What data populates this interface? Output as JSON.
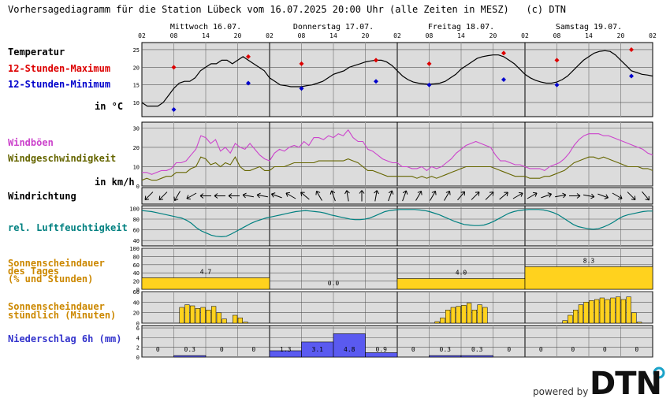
{
  "title": "Vorhersagediagramm für die Station Lübeck vom 16.07.2025 20:00 Uhr (alle Zeiten in MESZ)   (c) DTN",
  "branding": {
    "powered_by": "powered by",
    "logo_text": "DTN",
    "accent_color": "#1aa3c9"
  },
  "labels": {
    "temp_title": "Temperatur",
    "max_label": "12-Stunden-Maximum",
    "min_label": "12-Stunden-Minimum",
    "temp_unit": "in °C",
    "gust_label": "Windböen",
    "wind_label": "Windgeschwindigkeit",
    "wind_unit": "in km/h",
    "dir_label": "Windrichtung",
    "hum_label": "rel. Luftfeuchtigkeit",
    "sun_day_label_1": "Sonnenscheindauer",
    "sun_day_label_2": "des Tages",
    "sun_day_label_3": "(% und Stunden)",
    "sun_hour_label_1": "Sonnenscheindauer",
    "sun_hour_label_2": "stündlich (Minuten)",
    "precip_label": "Niederschlag 6h (mm)"
  },
  "colors": {
    "max": "#dd0000",
    "min": "#0000cc",
    "gust": "#cc44cc",
    "wind": "#666600",
    "hum": "#008080",
    "sun_label": "#cc8800",
    "sun_fill": "#ffd21e",
    "precip": "#3333cc",
    "precip_fill": "#5a5af0",
    "panel_bg": "#dcdcdc"
  },
  "chart_data": {
    "type": "line",
    "days": [
      "Mittwoch 16.07.",
      "Donnerstag 17.07.",
      "Freitag 18.07.",
      "Samstag 19.07."
    ],
    "hour_ticks": [
      "02",
      "08",
      "14",
      "20",
      "02",
      "08",
      "14",
      "20",
      "02",
      "08",
      "14",
      "20",
      "02",
      "08",
      "14",
      "20",
      "02"
    ],
    "temperature": {
      "yticks": [
        10,
        15,
        20,
        25
      ],
      "ylim": [
        6,
        27
      ],
      "hourly": [
        10,
        9,
        9,
        9,
        10,
        12,
        14,
        15.5,
        16,
        16,
        17,
        19,
        20,
        21,
        21,
        22,
        22,
        21,
        22,
        23,
        22,
        21,
        20,
        19,
        17,
        16,
        15,
        14.8,
        14.5,
        14.5,
        14.5,
        14.8,
        15,
        15.5,
        16,
        17,
        18,
        18.5,
        19,
        20,
        20.5,
        21,
        21.5,
        21.8,
        22,
        22,
        21.5,
        20.5,
        19,
        17.5,
        16.5,
        15.8,
        15.5,
        15.3,
        15.2,
        15.3,
        15.5,
        16,
        17,
        18,
        19.5,
        20.5,
        21.5,
        22.5,
        23,
        23.3,
        23.5,
        23.5,
        23,
        22,
        21,
        19.5,
        18,
        17,
        16.3,
        15.8,
        15.5,
        15.5,
        15.8,
        16.5,
        17.5,
        19,
        20.5,
        22,
        23,
        24,
        24.5,
        24.7,
        24.5,
        23.5,
        22,
        20.5,
        19,
        18.5,
        18,
        17.8,
        17.5
      ],
      "max": [
        20,
        23,
        21,
        22,
        21,
        24,
        22,
        25
      ],
      "max_hours": [
        6,
        20,
        30,
        44,
        54,
        68,
        78,
        92
      ],
      "min": [
        8,
        15.5,
        14,
        16,
        15,
        16.5,
        15,
        17.5
      ],
      "min_hours": [
        6,
        20,
        30,
        44,
        54,
        68,
        78,
        92
      ]
    },
    "wind": {
      "yticks": [
        0,
        10,
        20,
        30
      ],
      "ylim": [
        0,
        33
      ],
      "gust": [
        7,
        7,
        6,
        7,
        8,
        8,
        9,
        12,
        12,
        13,
        16,
        19,
        26,
        25,
        22,
        24,
        18,
        20,
        17,
        22,
        20,
        19,
        22,
        19,
        16,
        14,
        13,
        17,
        19,
        18,
        20,
        21,
        20,
        23,
        21,
        25,
        25,
        24,
        26,
        25,
        27,
        26,
        29,
        25,
        23,
        23,
        19,
        18,
        16,
        14,
        13,
        12,
        12,
        10,
        10,
        9,
        9,
        10,
        8,
        10,
        9,
        10,
        12,
        14,
        17,
        19,
        21,
        22,
        23,
        22,
        21,
        20,
        16,
        13,
        13,
        12,
        11,
        11,
        10,
        9,
        9,
        9,
        8,
        10,
        11,
        12,
        14,
        17,
        21,
        24,
        26,
        27,
        27,
        27,
        26,
        26,
        25,
        24,
        23,
        22,
        21,
        20,
        19,
        17,
        16
      ],
      "speed": [
        3,
        4,
        3,
        3,
        4,
        5,
        5,
        7,
        7,
        7,
        9,
        10,
        15,
        14,
        11,
        12,
        10,
        12,
        11,
        15,
        10,
        8,
        8,
        9,
        10,
        8,
        8,
        10,
        10,
        10,
        11,
        12,
        12,
        12,
        12,
        12,
        13,
        13,
        13,
        13,
        13,
        13,
        14,
        13,
        12,
        10,
        8,
        8,
        7,
        6,
        5,
        5,
        5,
        5,
        5,
        5,
        4,
        5,
        4,
        5,
        4,
        5,
        6,
        7,
        8,
        9,
        10,
        10,
        10,
        10,
        10,
        10,
        9,
        8,
        7,
        6,
        5,
        5,
        5,
        4,
        4,
        4,
        5,
        5,
        6,
        7,
        8,
        10,
        12,
        13,
        14,
        15,
        15,
        14,
        15,
        14,
        13,
        12,
        11,
        10,
        10,
        10,
        9,
        9,
        8
      ]
    },
    "wind_direction_deg": [
      45,
      45,
      30,
      60,
      90,
      90,
      90,
      100,
      100,
      110,
      120,
      130,
      150,
      160,
      170,
      180,
      190,
      200,
      200,
      210,
      210,
      210,
      220,
      225,
      225,
      230,
      240,
      240,
      250,
      260,
      270,
      280,
      290,
      300,
      315,
      320
    ],
    "humidity": {
      "yticks": [
        40,
        60,
        80,
        100
      ],
      "ylim": [
        30,
        105
      ],
      "hourly": [
        96,
        95,
        94,
        92,
        90,
        88,
        86,
        84,
        82,
        78,
        72,
        64,
        58,
        54,
        50,
        48,
        47,
        48,
        52,
        57,
        62,
        67,
        72,
        76,
        79,
        82,
        84,
        86,
        88,
        90,
        92,
        94,
        95,
        96,
        95,
        94,
        93,
        91,
        88,
        86,
        84,
        82,
        80,
        79,
        79,
        80,
        82,
        86,
        90,
        94,
        96,
        97,
        98,
        98,
        98,
        98,
        97,
        96,
        94,
        91,
        88,
        84,
        80,
        76,
        73,
        70,
        69,
        68,
        68,
        69,
        72,
        76,
        81,
        86,
        91,
        94,
        96,
        97,
        98,
        98,
        98,
        97,
        95,
        92,
        88,
        82,
        76,
        70,
        66,
        64,
        62,
        61,
        62,
        65,
        69,
        74,
        80,
        85,
        88,
        90,
        92,
        94,
        95,
        95
      ]
    },
    "sunshine_daily": {
      "yticks": [
        0,
        20,
        40,
        60,
        80,
        100
      ],
      "percent": [
        28,
        0,
        26,
        55
      ],
      "hours": [
        "4.7",
        "0.0",
        "4.0",
        "8.3"
      ]
    },
    "sunshine_hourly": {
      "yticks": [
        0,
        20,
        40,
        60
      ],
      "minutes": [
        0,
        0,
        0,
        0,
        0,
        0,
        0,
        30,
        35,
        33,
        28,
        30,
        25,
        32,
        20,
        8,
        0,
        15,
        10,
        2,
        0,
        0,
        0,
        0,
        0,
        0,
        0,
        0,
        0,
        0,
        0,
        0,
        0,
        0,
        0,
        0,
        0,
        0,
        0,
        0,
        0,
        0,
        0,
        0,
        0,
        0,
        0,
        0,
        0,
        0,
        0,
        0,
        0,
        0,
        0,
        3,
        10,
        25,
        30,
        32,
        34,
        38,
        25,
        35,
        30,
        0,
        0,
        0,
        0,
        0,
        0,
        0,
        0,
        0,
        0,
        0,
        0,
        0,
        0,
        5,
        15,
        25,
        35,
        40,
        43,
        45,
        48,
        45,
        48,
        50,
        45,
        50,
        20,
        2,
        0,
        0,
        0,
        0,
        0,
        0,
        0,
        0
      ]
    },
    "precipitation_6h": {
      "yticks": [
        0,
        2,
        4,
        6
      ],
      "ylim": [
        0,
        6.5
      ],
      "values": [
        0,
        0.3,
        0,
        0,
        1.3,
        3.1,
        4.8,
        0.9,
        0,
        0.3,
        0.3,
        0,
        0,
        0,
        0,
        0
      ],
      "labels": [
        "0",
        "0.3",
        "0",
        "0",
        "1.3",
        "3.1",
        "4.8",
        "0.9",
        "0",
        "0.3",
        "0.3",
        "0",
        "0",
        "0",
        "0",
        "0"
      ]
    }
  }
}
